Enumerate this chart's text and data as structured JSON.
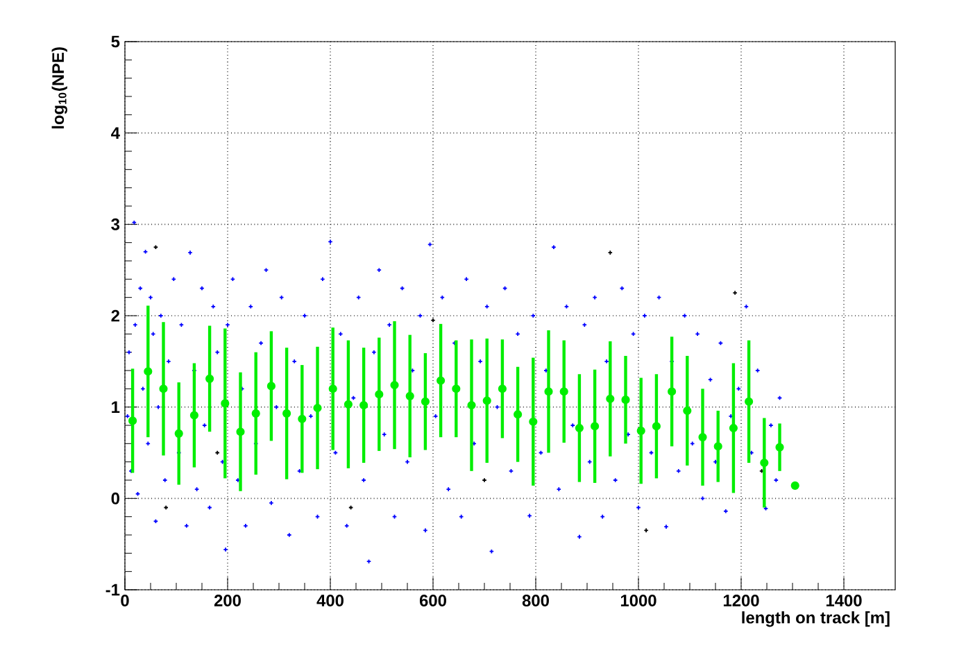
{
  "chart_data": {
    "type": "scatter",
    "xlabel": "length on track [m]",
    "ylabel": "log$_{10}$(NPE)",
    "xlim": [
      0,
      1500
    ],
    "ylim": [
      -1,
      5
    ],
    "xticks": [
      0,
      200,
      400,
      600,
      800,
      1000,
      1200,
      1400
    ],
    "yticks": [
      -1,
      0,
      1,
      2,
      3,
      4,
      5
    ],
    "grid": true,
    "series": [
      {
        "color": "#0000ff",
        "marker": "cross",
        "x": [
          5,
          8,
          12,
          18,
          20,
          25,
          30,
          35,
          40,
          45,
          50,
          55,
          60,
          65,
          70,
          78,
          85,
          95,
          105,
          110,
          120,
          127,
          135,
          140,
          150,
          155,
          165,
          172,
          180,
          190,
          196,
          200,
          210,
          220,
          228,
          235,
          245,
          255,
          265,
          275,
          285,
          295,
          305,
          320,
          330,
          340,
          350,
          362,
          375,
          385,
          400,
          410,
          420,
          432,
          445,
          455,
          465,
          475,
          485,
          495,
          505,
          515,
          525,
          540,
          550,
          560,
          575,
          585,
          594,
          605,
          618,
          630,
          642,
          655,
          665,
          680,
          692,
          705,
          714,
          725,
          740,
          752,
          765,
          788,
          795,
          810,
          820,
          835,
          845,
          860,
          872,
          885,
          895,
          905,
          915,
          930,
          938,
          955,
          968,
          980,
          990,
          1000,
          1012,
          1025,
          1040,
          1054,
          1065,
          1078,
          1090,
          1105,
          1115,
          1125,
          1140,
          1150,
          1160,
          1170,
          1180,
          1195,
          1210,
          1220,
          1232,
          1248,
          1258,
          1268,
          1275
        ],
        "values": [
          0.9,
          1.6,
          0.3,
          3.02,
          1.9,
          0.05,
          2.3,
          1.2,
          2.7,
          0.6,
          2.2,
          1.8,
          -0.25,
          1.0,
          2.0,
          0.2,
          1.5,
          2.4,
          0.5,
          1.9,
          -0.3,
          2.69,
          1.4,
          0.1,
          2.3,
          0.8,
          -0.1,
          2.1,
          1.6,
          0.4,
          -0.56,
          1.9,
          2.4,
          0.2,
          1.2,
          -0.3,
          2.1,
          0.6,
          1.7,
          2.5,
          -0.05,
          1.0,
          2.2,
          -0.4,
          1.5,
          0.3,
          2.0,
          0.9,
          -0.2,
          2.4,
          2.81,
          0.5,
          1.8,
          -0.3,
          1.1,
          2.2,
          0.2,
          -0.69,
          1.6,
          2.5,
          0.7,
          1.9,
          -0.2,
          2.3,
          0.4,
          1.4,
          2.0,
          -0.35,
          2.78,
          0.9,
          2.2,
          0.1,
          1.7,
          -0.2,
          2.4,
          0.6,
          1.5,
          2.1,
          -0.58,
          1.0,
          2.3,
          0.3,
          1.8,
          -0.19,
          2.0,
          0.5,
          1.4,
          2.75,
          0.1,
          2.1,
          0.8,
          -0.42,
          1.9,
          0.4,
          2.2,
          -0.2,
          1.5,
          0.2,
          2.3,
          0.7,
          1.8,
          -0.1,
          2.0,
          0.5,
          2.2,
          -0.31,
          1.5,
          0.3,
          2.0,
          0.6,
          1.8,
          0.0,
          1.3,
          0.4,
          1.7,
          -0.14,
          0.9,
          1.2,
          2.1,
          0.5,
          1.4,
          -0.11,
          0.8,
          0.2,
          1.1
        ]
      },
      {
        "color": "#000000",
        "marker": "cross",
        "x": [
          60,
          80,
          180,
          440,
          600,
          700,
          945,
          1015,
          1188,
          1240
        ],
        "values": [
          2.75,
          -0.1,
          0.5,
          -0.1,
          1.95,
          0.2,
          2.69,
          -0.35,
          2.25,
          0.3
        ]
      },
      {
        "color": "#00ee00",
        "marker": "circle",
        "x": [
          15,
          45,
          75,
          105,
          135,
          165,
          195,
          225,
          255,
          285,
          315,
          345,
          375,
          405,
          435,
          465,
          495,
          525,
          555,
          585,
          615,
          645,
          675,
          705,
          735,
          765,
          795,
          825,
          855,
          885,
          915,
          945,
          975,
          1005,
          1035,
          1065,
          1095,
          1125,
          1155,
          1185,
          1215,
          1245,
          1275,
          1305
        ],
        "values": [
          0.85,
          1.39,
          1.2,
          0.71,
          0.91,
          1.31,
          1.04,
          0.73,
          0.93,
          1.23,
          0.93,
          0.87,
          0.99,
          1.2,
          1.03,
          1.02,
          1.14,
          1.24,
          1.12,
          1.06,
          1.29,
          1.2,
          1.02,
          1.07,
          1.2,
          0.92,
          0.84,
          1.17,
          1.17,
          0.77,
          0.79,
          1.09,
          1.08,
          0.74,
          0.79,
          1.17,
          0.96,
          0.67,
          0.57,
          0.77,
          1.06,
          0.39,
          0.56,
          0.14
        ],
        "errors": [
          0.57,
          0.72,
          0.73,
          0.56,
          0.57,
          0.58,
          0.82,
          0.65,
          0.67,
          0.6,
          0.72,
          0.59,
          0.67,
          0.67,
          0.7,
          0.63,
          0.62,
          0.7,
          0.67,
          0.53,
          0.62,
          0.53,
          0.72,
          0.68,
          0.54,
          0.52,
          0.7,
          0.67,
          0.56,
          0.59,
          0.62,
          0.63,
          0.48,
          0.58,
          0.57,
          0.6,
          0.6,
          0.53,
          0.39,
          0.71,
          0.67,
          0.49,
          0.26,
          null
        ]
      }
    ]
  }
}
